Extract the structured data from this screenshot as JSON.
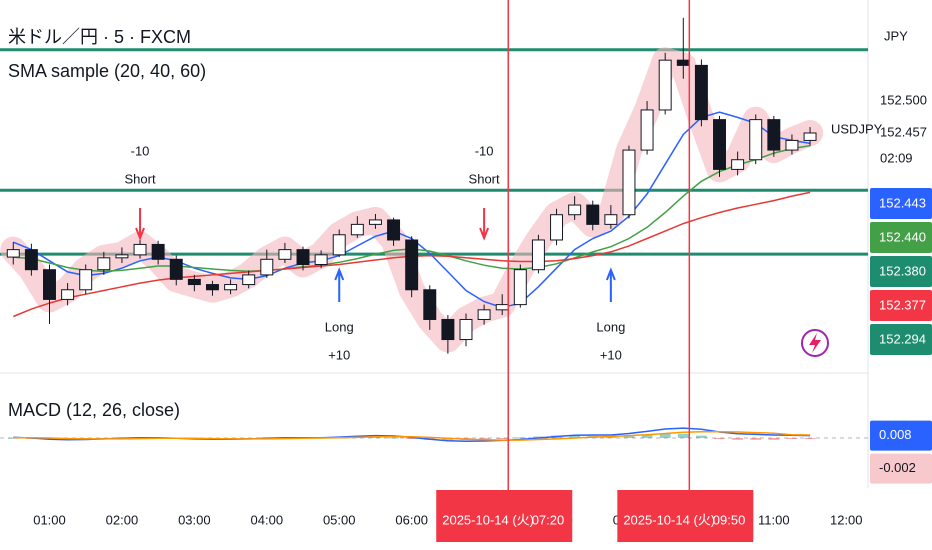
{
  "chart_data": {
    "type": "candlestick",
    "title": "米ドル／円 · 5 · FXCM",
    "subtitle": "SMA sample (20, 40, 60)",
    "currency": "JPY",
    "symbol": "USDJPY",
    "countdown": "02:09",
    "x": [
      "00:30",
      "00:45",
      "01:00",
      "01:15",
      "01:30",
      "01:45",
      "02:00",
      "02:15",
      "02:30",
      "02:45",
      "03:00",
      "03:15",
      "03:30",
      "03:45",
      "04:00",
      "04:15",
      "04:30",
      "04:45",
      "05:00",
      "05:15",
      "05:30",
      "05:45",
      "06:00",
      "06:15",
      "06:30",
      "06:45",
      "07:00",
      "07:15",
      "07:30",
      "07:45",
      "08:00",
      "08:15",
      "08:30",
      "08:45",
      "09:00",
      "09:15",
      "09:30",
      "09:45",
      "10:00",
      "10:15",
      "10:30",
      "10:45",
      "11:00",
      "11:15",
      "11:30"
    ],
    "open": [
      152.29,
      152.3,
      152.273,
      152.233,
      152.246,
      152.273,
      152.289,
      152.293,
      152.307,
      152.287,
      152.26,
      152.253,
      152.246,
      152.253,
      152.266,
      152.287,
      152.3,
      152.28,
      152.293,
      152.32,
      152.334,
      152.34,
      152.313,
      152.246,
      152.206,
      152.179,
      152.206,
      152.219,
      152.226,
      152.273,
      152.313,
      152.347,
      152.36,
      152.334,
      152.347,
      152.434,
      152.488,
      152.555,
      152.548,
      152.475,
      152.408,
      152.421,
      152.475,
      152.434,
      152.447
    ],
    "high": [
      152.31,
      152.308,
      152.28,
      152.255,
      152.28,
      152.297,
      152.303,
      152.318,
      152.312,
      152.292,
      152.266,
      152.258,
      152.26,
      152.272,
      152.3,
      152.309,
      152.304,
      152.299,
      152.327,
      152.345,
      152.348,
      152.343,
      152.318,
      152.252,
      152.212,
      152.214,
      152.226,
      152.24,
      152.28,
      152.32,
      152.355,
      152.372,
      152.366,
      152.36,
      152.44,
      152.5,
      152.565,
      152.612,
      152.556,
      152.48,
      152.432,
      152.482,
      152.48,
      152.455,
      152.465
    ],
    "low": [
      152.28,
      152.265,
      152.2,
      152.225,
      152.24,
      152.266,
      152.282,
      152.288,
      152.28,
      152.252,
      152.244,
      152.238,
      152.24,
      152.248,
      152.262,
      152.282,
      152.272,
      152.275,
      152.29,
      152.316,
      152.328,
      152.305,
      152.236,
      152.192,
      152.16,
      152.17,
      152.199,
      152.212,
      152.222,
      152.268,
      152.306,
      152.34,
      152.326,
      152.328,
      152.342,
      152.428,
      152.482,
      152.53,
      152.466,
      152.398,
      152.4,
      152.415,
      152.425,
      152.428,
      152.44
    ],
    "close": [
      152.3,
      152.273,
      152.233,
      152.246,
      152.273,
      152.289,
      152.293,
      152.307,
      152.287,
      152.26,
      152.253,
      152.246,
      152.253,
      152.266,
      152.287,
      152.3,
      152.28,
      152.293,
      152.32,
      152.334,
      152.34,
      152.313,
      152.246,
      152.206,
      152.179,
      152.206,
      152.219,
      152.226,
      152.273,
      152.313,
      152.347,
      152.36,
      152.334,
      152.347,
      152.434,
      152.488,
      152.555,
      152.548,
      152.475,
      152.408,
      152.421,
      152.475,
      152.434,
      152.447,
      152.457
    ],
    "up_color": "#ffffff",
    "down_color": "#131722",
    "band_color": "#f4b6bd",
    "xlim": [
      "00:19",
      "12:18"
    ],
    "xticks": [
      "01:00",
      "02:00",
      "03:00",
      "04:00",
      "05:00",
      "06:00",
      "07:00",
      "08:00",
      "09:00",
      "10:00",
      "11:00",
      "12:00"
    ],
    "ylim": [
      152.138,
      152.636
    ],
    "yticks": [
      {
        "value": 152.5,
        "label": "152.500"
      }
    ],
    "series": [
      {
        "color": "#2962ff",
        "values": [
          152.31,
          152.3,
          152.285,
          152.27,
          152.265,
          152.268,
          152.275,
          152.285,
          152.29,
          152.285,
          152.275,
          152.268,
          152.262,
          152.26,
          152.265,
          152.275,
          152.282,
          152.285,
          152.292,
          152.305,
          152.318,
          152.325,
          152.315,
          152.295,
          152.27,
          152.245,
          152.23,
          152.222,
          152.228,
          152.25,
          152.275,
          152.3,
          152.315,
          152.325,
          152.345,
          152.375,
          152.415,
          152.455,
          152.478,
          152.485,
          152.478,
          152.47,
          152.452,
          152.447,
          152.443
        ]
      },
      {
        "color": "#43a047",
        "values": [
          152.29,
          152.288,
          152.282,
          152.276,
          152.272,
          152.271,
          152.272,
          152.275,
          152.278,
          152.278,
          152.276,
          152.274,
          152.272,
          152.271,
          152.272,
          152.274,
          152.277,
          152.279,
          152.283,
          152.288,
          152.294,
          152.299,
          152.301,
          152.298,
          152.292,
          152.285,
          152.279,
          152.275,
          152.274,
          152.276,
          152.281,
          152.289,
          152.297,
          152.304,
          152.315,
          152.33,
          152.35,
          152.372,
          152.392,
          152.405,
          152.414,
          152.421,
          152.43,
          152.436,
          152.44
        ]
      },
      {
        "color": "#e53935",
        "values": [
          152.21,
          152.22,
          152.228,
          152.235,
          152.24,
          152.245,
          152.25,
          152.255,
          152.259,
          152.262,
          152.264,
          152.266,
          152.268,
          152.27,
          152.272,
          152.274,
          152.276,
          152.278,
          152.28,
          152.283,
          152.286,
          152.289,
          152.291,
          152.292,
          152.291,
          152.289,
          152.287,
          152.285,
          152.284,
          152.284,
          152.285,
          152.288,
          152.292,
          152.297,
          152.305,
          152.315,
          152.325,
          152.335,
          152.343,
          152.35,
          152.356,
          152.361,
          152.366,
          152.372,
          152.377
        ]
      }
    ],
    "levels": {
      "color": "#1e8c6e",
      "values": [
        152.569,
        152.38,
        152.294
      ]
    },
    "price_labels": [
      {
        "value": 152.443,
        "label": "152.443",
        "color": "#2962ff"
      },
      {
        "value": 152.44,
        "label": "152.440",
        "color": "#43a047"
      },
      {
        "value": 152.38,
        "label": "152.380",
        "color": "#1e8c6e"
      },
      {
        "value": 152.377,
        "label": "152.377",
        "color": "#f23645"
      },
      {
        "value": 152.294,
        "label": "152.294",
        "color": "#1e8c6e"
      }
    ],
    "signals": [
      {
        "x": "02:15",
        "qty": "-10",
        "label": "Short",
        "arrow": "down",
        "color": "#f23645"
      },
      {
        "x": "05:00",
        "qty": "+10",
        "label": "Long",
        "arrow": "up",
        "color": "#2962ff"
      },
      {
        "x": "07:00",
        "qty": "-10",
        "label": "Short",
        "arrow": "down",
        "color": "#f23645"
      },
      {
        "x": "08:45",
        "qty": "+10",
        "label": "Long",
        "arrow": "up",
        "color": "#2962ff"
      }
    ],
    "markers": [
      {
        "date": "2025-10-14 (火)",
        "time": "07:20"
      },
      {
        "date": "2025-10-14 (火)",
        "time": "09:50"
      }
    ],
    "marker_color": "#f23645",
    "macd": {
      "title": "MACD (12, 26, close)",
      "ylim": [
        -0.1,
        0.2
      ],
      "series": [
        {
          "color": "#2962ff",
          "values": [
            0.002,
            0.0,
            -0.004,
            -0.006,
            -0.005,
            -0.003,
            -0.001,
            0.001,
            0.001,
            -0.001,
            -0.003,
            -0.004,
            -0.004,
            -0.003,
            -0.001,
            0.001,
            0.001,
            0.001,
            0.003,
            0.006,
            0.008,
            0.007,
            0.002,
            -0.004,
            -0.009,
            -0.011,
            -0.01,
            -0.008,
            -0.005,
            0.0,
            0.005,
            0.009,
            0.01,
            0.01,
            0.015,
            0.022,
            0.03,
            0.033,
            0.029,
            0.02,
            0.014,
            0.012,
            0.01,
            0.009,
            0.008
          ]
        },
        {
          "color": "#ff9800",
          "values": [
            0.001,
            0.001,
            0.0,
            -0.002,
            -0.003,
            -0.003,
            -0.003,
            -0.002,
            -0.001,
            -0.001,
            -0.001,
            -0.002,
            -0.003,
            -0.003,
            -0.003,
            -0.002,
            -0.001,
            0.0,
            0.001,
            0.002,
            0.004,
            0.005,
            0.004,
            0.002,
            -0.001,
            -0.004,
            -0.006,
            -0.007,
            -0.007,
            -0.005,
            -0.003,
            0.0,
            0.003,
            0.005,
            0.008,
            0.011,
            0.015,
            0.019,
            0.021,
            0.021,
            0.02,
            0.018,
            0.016,
            0.011,
            0.01
          ]
        }
      ],
      "value_labels": [
        {
          "value": 0.008,
          "label": "0.008",
          "color": "#2962ff",
          "text_color": "#ffffff"
        },
        {
          "value": -0.002,
          "label": "-0.002",
          "color": "#f7c9cc",
          "text_color": "#131722"
        }
      ]
    }
  }
}
